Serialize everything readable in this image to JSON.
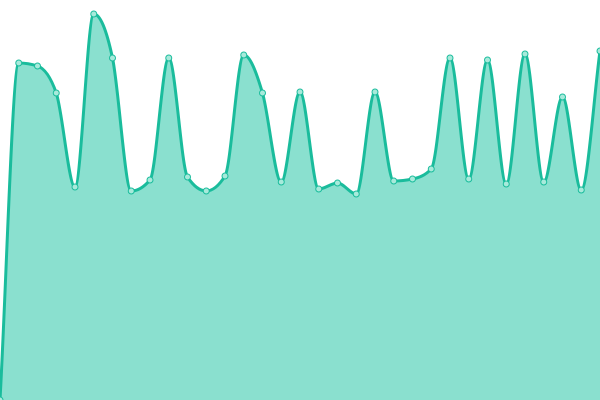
{
  "chart_data": {
    "type": "area",
    "title": "",
    "xlabel": "",
    "ylabel": "",
    "x": [
      0,
      1,
      2,
      3,
      4,
      5,
      6,
      7,
      8,
      9,
      10,
      11,
      12,
      13,
      14,
      15,
      16,
      17,
      18,
      19,
      20,
      21,
      22,
      23,
      24,
      25,
      26,
      27,
      28,
      29,
      30,
      31,
      32
    ],
    "values": [
      0,
      337,
      334,
      307,
      213,
      386,
      342,
      209,
      220,
      342,
      223,
      209,
      224,
      345,
      307,
      218,
      308,
      211,
      217,
      206,
      308,
      219,
      221,
      231,
      342,
      221,
      340,
      216,
      346,
      218,
      303,
      210,
      349
    ],
    "ylim": [
      0,
      400
    ],
    "grid": false,
    "axes_visible": false,
    "curve": "smooth",
    "colors": {
      "line": "#1abc9c",
      "fill": "#8ae0cf",
      "point_fill": "#a8eadb",
      "point_stroke": "#1abc9c"
    }
  }
}
